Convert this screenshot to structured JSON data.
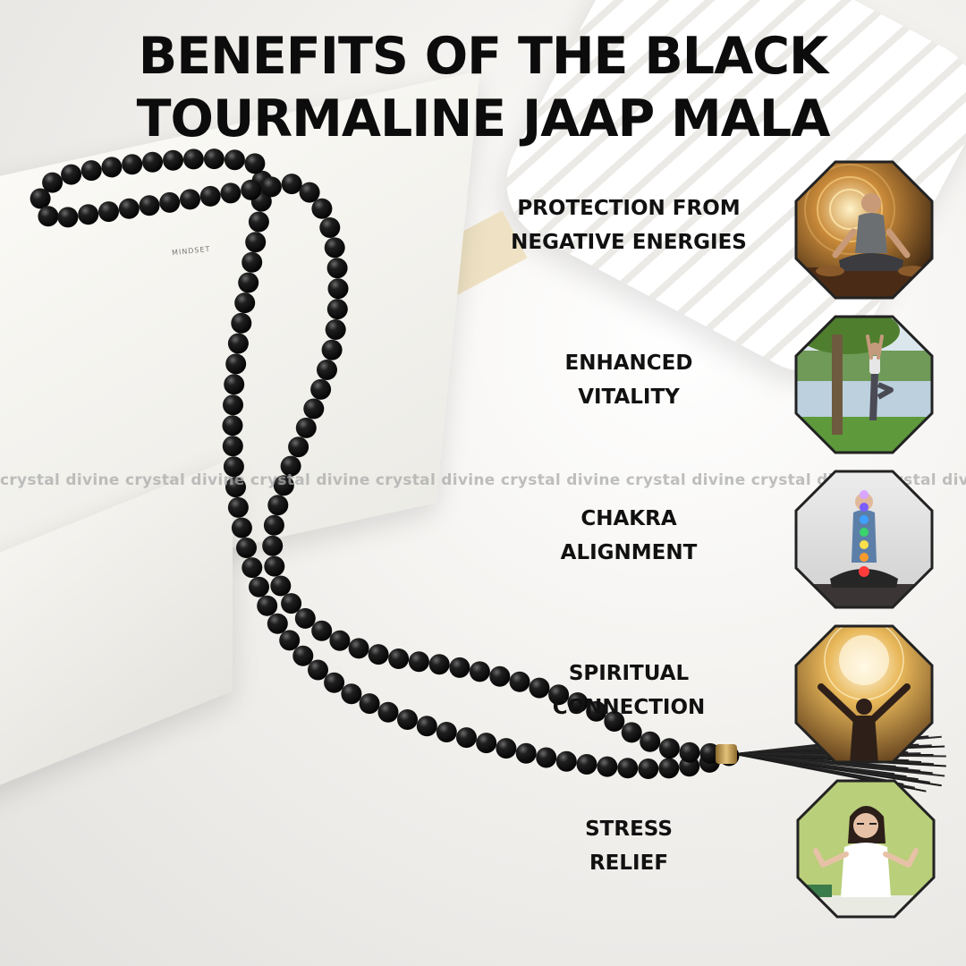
{
  "title": {
    "line1": "BENEFITS OF THE BLACK",
    "line2": "TOURMALINE JAAP MALA"
  },
  "book": {
    "page_label": "MINDSET"
  },
  "watermark": "crystal divine crystal divine crystal divine crystal divine crystal divine crystal divine crystal divine crystal divine",
  "benefits": [
    {
      "line1": "PROTECTION FROM",
      "line2": "NEGATIVE ENERGIES",
      "icon": "meditating-man-with-energy-rings"
    },
    {
      "line1": "ENHANCED",
      "line2": "VITALITY",
      "icon": "woman-tree-pose-by-lake"
    },
    {
      "line1": "CHAKRA",
      "line2": "ALIGNMENT",
      "icon": "meditating-woman-with-chakras"
    },
    {
      "line1": "SPIRITUAL",
      "line2": "CONNECTION",
      "icon": "man-arms-raised-in-light"
    },
    {
      "line1": "STRESS",
      "line2": "RELIEF",
      "icon": "woman-meditating-at-desk"
    }
  ],
  "colors": {
    "text": "#111111",
    "octagon_border": "#222222",
    "bead": "#141414",
    "tassel_cap": "#c9a45a"
  }
}
